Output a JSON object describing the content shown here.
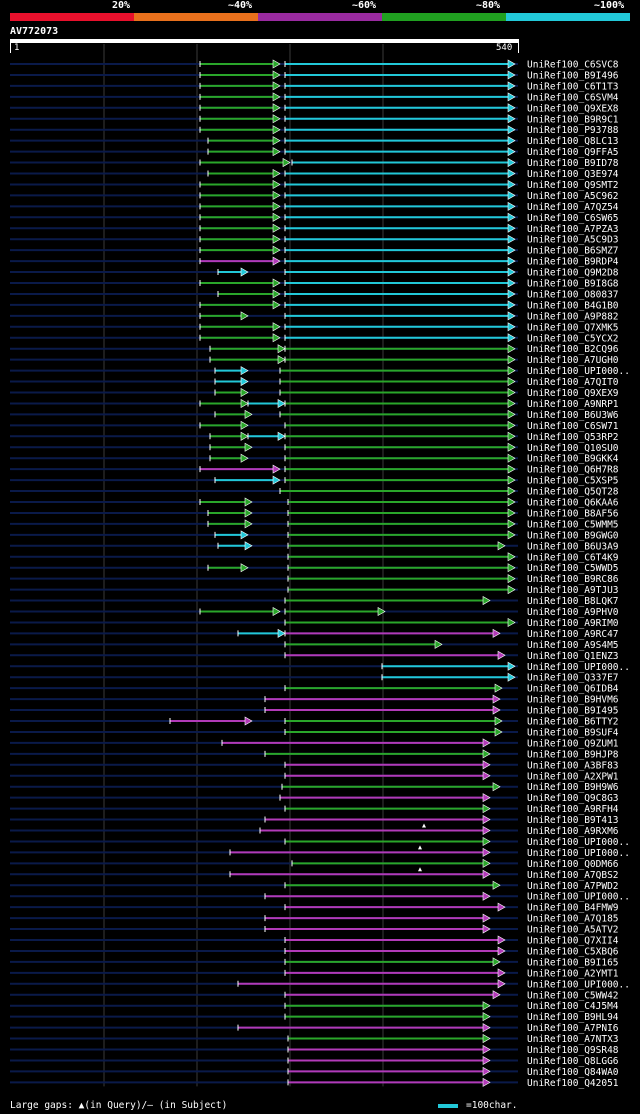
{
  "legend": {
    "segments": [
      {
        "label": "20%",
        "color": "#e8102c"
      },
      {
        "label": "~40%",
        "color": "#e8701c"
      },
      {
        "label": "~60%",
        "color": "#9a2aa0"
      },
      {
        "label": "~80%",
        "color": "#20a020"
      },
      {
        "label": "~100%",
        "color": "#22c8d8"
      }
    ]
  },
  "query": {
    "id": "AV772073",
    "start": "1",
    "end": "540",
    "length": 540
  },
  "colors": {
    "green": "#2aa62a",
    "cyan": "#22c8d8",
    "magenta": "#b23ab8",
    "backbone": "#0a1a4a",
    "grid": "#3a3a3a"
  },
  "hits": [
    {
      "name": "UniRef100_C6SVC8",
      "segments": [
        [
          200,
          280,
          "green"
        ],
        [
          285,
          515,
          "cyan"
        ]
      ]
    },
    {
      "name": "UniRef100_B9I496",
      "segments": [
        [
          200,
          280,
          "green"
        ],
        [
          285,
          515,
          "cyan"
        ]
      ]
    },
    {
      "name": "UniRef100_C6T1T3",
      "segments": [
        [
          200,
          280,
          "green"
        ],
        [
          285,
          515,
          "cyan"
        ]
      ]
    },
    {
      "name": "UniRef100_C6SVM4",
      "segments": [
        [
          200,
          280,
          "green"
        ],
        [
          285,
          515,
          "cyan"
        ]
      ]
    },
    {
      "name": "UniRef100_Q9XEX8",
      "segments": [
        [
          200,
          280,
          "green"
        ],
        [
          285,
          515,
          "cyan"
        ]
      ]
    },
    {
      "name": "UniRef100_B9R9C1",
      "segments": [
        [
          200,
          280,
          "green"
        ],
        [
          285,
          515,
          "cyan"
        ]
      ]
    },
    {
      "name": "UniRef100_P93788",
      "segments": [
        [
          200,
          280,
          "green"
        ],
        [
          285,
          515,
          "cyan"
        ]
      ]
    },
    {
      "name": "UniRef100_Q8LC13",
      "segments": [
        [
          208,
          280,
          "green"
        ],
        [
          285,
          515,
          "cyan"
        ]
      ]
    },
    {
      "name": "UniRef100_Q9FFA5",
      "segments": [
        [
          208,
          280,
          "green"
        ],
        [
          285,
          515,
          "cyan"
        ]
      ]
    },
    {
      "name": "UniRef100_B9ID78",
      "segments": [
        [
          200,
          290,
          "green"
        ],
        [
          292,
          515,
          "cyan"
        ]
      ]
    },
    {
      "name": "UniRef100_Q3E974",
      "segments": [
        [
          208,
          280,
          "green"
        ],
        [
          285,
          515,
          "cyan"
        ]
      ]
    },
    {
      "name": "UniRef100_Q9SMT2",
      "segments": [
        [
          200,
          280,
          "green"
        ],
        [
          285,
          515,
          "cyan"
        ]
      ]
    },
    {
      "name": "UniRef100_A5C962",
      "segments": [
        [
          200,
          280,
          "green"
        ],
        [
          285,
          515,
          "cyan"
        ]
      ]
    },
    {
      "name": "UniRef100_A7QZ54",
      "segments": [
        [
          200,
          280,
          "green"
        ],
        [
          285,
          515,
          "cyan"
        ]
      ]
    },
    {
      "name": "UniRef100_C6SW65",
      "segments": [
        [
          200,
          280,
          "green"
        ],
        [
          285,
          515,
          "cyan"
        ]
      ]
    },
    {
      "name": "UniRef100_A7PZA3",
      "segments": [
        [
          200,
          280,
          "green"
        ],
        [
          285,
          515,
          "cyan"
        ]
      ]
    },
    {
      "name": "UniRef100_A5C9D3",
      "segments": [
        [
          200,
          280,
          "green"
        ],
        [
          285,
          515,
          "cyan"
        ]
      ]
    },
    {
      "name": "UniRef100_B6SMZ7",
      "segments": [
        [
          200,
          280,
          "green"
        ],
        [
          285,
          515,
          "cyan"
        ]
      ]
    },
    {
      "name": "UniRef100_B9RDP4",
      "segments": [
        [
          200,
          280,
          "magenta"
        ],
        [
          285,
          515,
          "cyan"
        ]
      ]
    },
    {
      "name": "UniRef100_Q9M2D8",
      "segments": [
        [
          218,
          248,
          "cyan"
        ],
        [
          285,
          515,
          "cyan"
        ]
      ]
    },
    {
      "name": "UniRef100_B9I8G8",
      "segments": [
        [
          200,
          280,
          "green"
        ],
        [
          285,
          515,
          "cyan"
        ]
      ]
    },
    {
      "name": "UniRef100_O80837",
      "segments": [
        [
          218,
          280,
          "green"
        ],
        [
          285,
          515,
          "cyan"
        ]
      ]
    },
    {
      "name": "UniRef100_B4G1B0",
      "segments": [
        [
          200,
          280,
          "green"
        ],
        [
          285,
          515,
          "cyan"
        ]
      ]
    },
    {
      "name": "UniRef100_A9P882",
      "segments": [
        [
          200,
          248,
          "green"
        ],
        [
          285,
          515,
          "cyan"
        ]
      ]
    },
    {
      "name": "UniRef100_Q7XMK5",
      "segments": [
        [
          200,
          280,
          "green"
        ],
        [
          285,
          515,
          "cyan"
        ]
      ]
    },
    {
      "name": "UniRef100_C5YCX2",
      "segments": [
        [
          200,
          280,
          "green"
        ],
        [
          285,
          515,
          "cyan"
        ]
      ]
    },
    {
      "name": "UniRef100_B2CQ96",
      "segments": [
        [
          210,
          285,
          "green"
        ],
        [
          285,
          515,
          "green"
        ]
      ]
    },
    {
      "name": "UniRef100_A7UGH0",
      "segments": [
        [
          210,
          285,
          "green"
        ],
        [
          285,
          515,
          "green"
        ]
      ]
    },
    {
      "name": "UniRef100_UPI000..",
      "segments": [
        [
          215,
          248,
          "cyan"
        ],
        [
          280,
          515,
          "green"
        ]
      ]
    },
    {
      "name": "UniRef100_A7QIT0",
      "segments": [
        [
          215,
          248,
          "cyan"
        ],
        [
          280,
          515,
          "green"
        ]
      ]
    },
    {
      "name": "UniRef100_Q9XEX9",
      "segments": [
        [
          215,
          248,
          "green"
        ],
        [
          280,
          515,
          "green"
        ]
      ]
    },
    {
      "name": "UniRef100_A9NRP1",
      "segments": [
        [
          200,
          248,
          "green"
        ],
        [
          248,
          285,
          "cyan"
        ],
        [
          285,
          515,
          "green"
        ]
      ]
    },
    {
      "name": "UniRef100_B6U3W6",
      "segments": [
        [
          215,
          252,
          "green"
        ],
        [
          280,
          515,
          "green"
        ]
      ]
    },
    {
      "name": "UniRef100_C6SW71",
      "segments": [
        [
          200,
          248,
          "green"
        ],
        [
          285,
          515,
          "green"
        ]
      ]
    },
    {
      "name": "UniRef100_Q53RP2",
      "segments": [
        [
          210,
          248,
          "green"
        ],
        [
          248,
          285,
          "cyan"
        ],
        [
          285,
          515,
          "green"
        ]
      ]
    },
    {
      "name": "UniRef100_Q10SU0",
      "segments": [
        [
          210,
          252,
          "green"
        ],
        [
          285,
          515,
          "green"
        ]
      ]
    },
    {
      "name": "UniRef100_B9GKK4",
      "segments": [
        [
          210,
          248,
          "green"
        ],
        [
          285,
          515,
          "green"
        ]
      ]
    },
    {
      "name": "UniRef100_Q6H7R8",
      "segments": [
        [
          200,
          280,
          "magenta"
        ],
        [
          285,
          515,
          "green"
        ]
      ]
    },
    {
      "name": "UniRef100_C5XSP5",
      "segments": [
        [
          215,
          280,
          "cyan"
        ],
        [
          285,
          515,
          "green"
        ]
      ]
    },
    {
      "name": "UniRef100_Q5QT28",
      "segments": [
        [
          280,
          515,
          "green"
        ]
      ]
    },
    {
      "name": "UniRef100_Q6KAA6",
      "segments": [
        [
          200,
          252,
          "green"
        ],
        [
          288,
          515,
          "green"
        ]
      ]
    },
    {
      "name": "UniRef100_B8AF56",
      "segments": [
        [
          208,
          252,
          "green"
        ],
        [
          288,
          515,
          "green"
        ]
      ]
    },
    {
      "name": "UniRef100_C5WMM5",
      "segments": [
        [
          208,
          252,
          "green"
        ],
        [
          288,
          515,
          "green"
        ]
      ]
    },
    {
      "name": "UniRef100_B9GWG0",
      "segments": [
        [
          215,
          248,
          "cyan"
        ],
        [
          288,
          515,
          "green"
        ]
      ]
    },
    {
      "name": "UniRef100_B6U3A9",
      "segments": [
        [
          218,
          252,
          "cyan"
        ],
        [
          288,
          505,
          "green"
        ]
      ]
    },
    {
      "name": "UniRef100_C6T4K9",
      "segments": [
        [
          288,
          515,
          "green"
        ]
      ]
    },
    {
      "name": "UniRef100_C5WWD5",
      "segments": [
        [
          208,
          248,
          "green"
        ],
        [
          288,
          515,
          "green"
        ]
      ]
    },
    {
      "name": "UniRef100_B9RC86",
      "segments": [
        [
          288,
          515,
          "green"
        ]
      ]
    },
    {
      "name": "UniRef100_A9TJU3",
      "segments": [
        [
          288,
          515,
          "green"
        ]
      ]
    },
    {
      "name": "UniRef100_B8LQK7",
      "segments": [
        [
          285,
          490,
          "green"
        ]
      ]
    },
    {
      "name": "UniRef100_A9PHV0",
      "segments": [
        [
          200,
          280,
          "green"
        ],
        [
          285,
          385,
          "green"
        ]
      ]
    },
    {
      "name": "UniRef100_A9RIM0",
      "segments": [
        [
          285,
          515,
          "green"
        ]
      ]
    },
    {
      "name": "UniRef100_A9RC47",
      "segments": [
        [
          238,
          285,
          "cyan"
        ],
        [
          285,
          500,
          "magenta"
        ]
      ]
    },
    {
      "name": "UniRef100_A9S4M5",
      "segments": [
        [
          285,
          442,
          "green"
        ]
      ]
    },
    {
      "name": "UniRef100_Q1ENZ3",
      "segments": [
        [
          285,
          505,
          "magenta"
        ]
      ]
    },
    {
      "name": "UniRef100_UPI000..",
      "segments": [
        [
          382,
          515,
          "cyan"
        ]
      ]
    },
    {
      "name": "UniRef100_Q337E7",
      "segments": [
        [
          382,
          515,
          "cyan"
        ]
      ]
    },
    {
      "name": "UniRef100_Q6IDB4",
      "segments": [
        [
          285,
          502,
          "green"
        ]
      ]
    },
    {
      "name": "UniRef100_B9HVM6",
      "segments": [
        [
          265,
          500,
          "magenta"
        ]
      ]
    },
    {
      "name": "UniRef100_B9I495",
      "segments": [
        [
          265,
          500,
          "magenta"
        ]
      ]
    },
    {
      "name": "UniRef100_B6TTY2",
      "segments": [
        [
          170,
          252,
          "magenta"
        ],
        [
          285,
          502,
          "green"
        ]
      ]
    },
    {
      "name": "UniRef100_B9SUF4",
      "segments": [
        [
          285,
          502,
          "green"
        ]
      ]
    },
    {
      "name": "UniRef100_Q9ZUM1",
      "segments": [
        [
          222,
          490,
          "magenta"
        ]
      ]
    },
    {
      "name": "UniRef100_B9HJP8",
      "segments": [
        [
          265,
          490,
          "green"
        ]
      ]
    },
    {
      "name": "UniRef100_A3BF83",
      "segments": [
        [
          285,
          490,
          "magenta"
        ]
      ]
    },
    {
      "name": "UniRef100_A2XPW1",
      "segments": [
        [
          285,
          490,
          "magenta"
        ]
      ]
    },
    {
      "name": "UniRef100_B9H9W6",
      "segments": [
        [
          282,
          500,
          "green"
        ]
      ]
    },
    {
      "name": "UniRef100_Q9C8G3",
      "segments": [
        [
          280,
          490,
          "magenta"
        ]
      ]
    },
    {
      "name": "UniRef100_A9RFH4",
      "segments": [
        [
          285,
          490,
          "green"
        ]
      ]
    },
    {
      "name": "UniRef100_B9T413",
      "segments": [
        [
          265,
          490,
          "magenta"
        ]
      ]
    },
    {
      "name": "UniRef100_A9RXM6",
      "segments": [
        [
          260,
          490,
          "magenta"
        ]
      ],
      "gap": 424
    },
    {
      "name": "UniRef100_UPI000..",
      "segments": [
        [
          285,
          490,
          "green"
        ]
      ]
    },
    {
      "name": "UniRef100_UPI000..",
      "segments": [
        [
          230,
          490,
          "magenta"
        ]
      ],
      "gap": 420
    },
    {
      "name": "UniRef100_Q0DM66",
      "segments": [
        [
          292,
          490,
          "green"
        ]
      ]
    },
    {
      "name": "UniRef100_A7QBS2",
      "segments": [
        [
          230,
          490,
          "magenta"
        ]
      ],
      "gap": 420
    },
    {
      "name": "UniRef100_A7PWD2",
      "segments": [
        [
          285,
          500,
          "green"
        ]
      ]
    },
    {
      "name": "UniRef100_UPI000..",
      "segments": [
        [
          265,
          490,
          "magenta"
        ]
      ]
    },
    {
      "name": "UniRef100_B4FMW9",
      "segments": [
        [
          285,
          505,
          "magenta"
        ]
      ]
    },
    {
      "name": "UniRef100_A7Q185",
      "segments": [
        [
          265,
          490,
          "magenta"
        ]
      ]
    },
    {
      "name": "UniRef100_A5ATV2",
      "segments": [
        [
          265,
          490,
          "magenta"
        ]
      ]
    },
    {
      "name": "UniRef100_Q7XII4",
      "segments": [
        [
          285,
          505,
          "magenta"
        ]
      ]
    },
    {
      "name": "UniRef100_C5XBQ6",
      "segments": [
        [
          285,
          505,
          "magenta"
        ]
      ]
    },
    {
      "name": "UniRef100_B9I165",
      "segments": [
        [
          285,
          500,
          "green"
        ]
      ]
    },
    {
      "name": "UniRef100_A2YMT1",
      "segments": [
        [
          285,
          505,
          "magenta"
        ]
      ]
    },
    {
      "name": "UniRef100_UPI000..",
      "segments": [
        [
          238,
          505,
          "magenta"
        ]
      ]
    },
    {
      "name": "UniRef100_C5WW42",
      "segments": [
        [
          285,
          500,
          "magenta"
        ]
      ]
    },
    {
      "name": "UniRef100_C4J5M4",
      "segments": [
        [
          285,
          490,
          "green"
        ]
      ]
    },
    {
      "name": "UniRef100_B9HL94",
      "segments": [
        [
          285,
          490,
          "green"
        ]
      ]
    },
    {
      "name": "UniRef100_A7PNI6",
      "segments": [
        [
          238,
          490,
          "magenta"
        ]
      ]
    },
    {
      "name": "UniRef100_A7NTX3",
      "segments": [
        [
          288,
          490,
          "green"
        ]
      ]
    },
    {
      "name": "UniRef100_Q9SR48",
      "segments": [
        [
          288,
          490,
          "magenta"
        ]
      ]
    },
    {
      "name": "UniRef100_Q8LGG6",
      "segments": [
        [
          288,
          490,
          "magenta"
        ]
      ]
    },
    {
      "name": "UniRef100_Q84WA0",
      "segments": [
        [
          288,
          490,
          "magenta"
        ]
      ]
    },
    {
      "name": "UniRef100_Q42051",
      "segments": [
        [
          288,
          490,
          "magenta"
        ]
      ]
    }
  ],
  "footer": {
    "gaps_label": "Large gaps: ▲(in Query)/— (in Subject)",
    "scale_label": "=100char."
  }
}
